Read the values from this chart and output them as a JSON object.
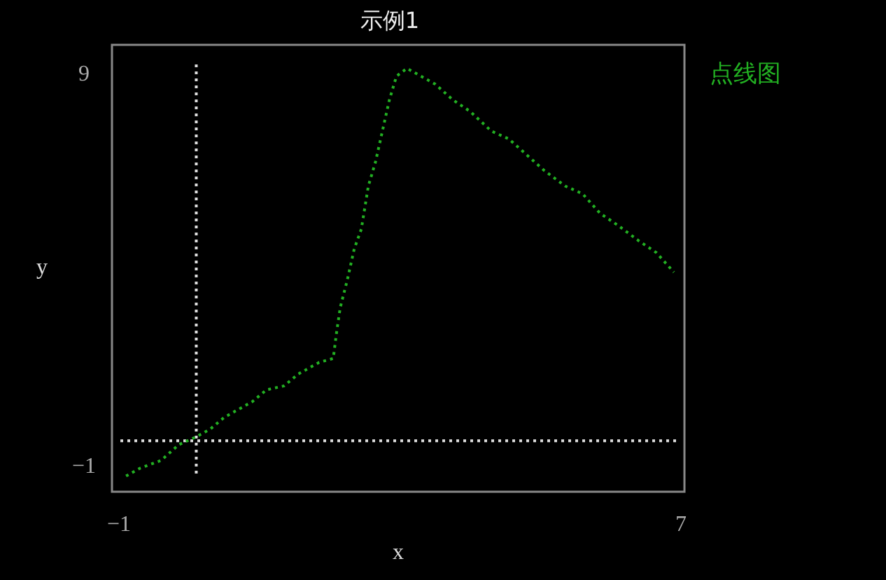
{
  "chart_data": {
    "type": "line",
    "title": "示例1",
    "xlabel": "x",
    "ylabel": "y",
    "x": [
      -0.9,
      -0.7,
      -0.4,
      -0.15,
      0.1,
      0.3,
      0.5,
      0.7,
      0.9,
      1.1,
      1.35,
      1.55,
      1.85,
      2.05,
      2.1,
      2.15,
      2.25,
      2.35,
      2.45,
      2.55,
      2.65,
      2.75,
      2.85,
      2.95,
      3.1,
      3.3,
      3.5,
      3.75,
      4.0,
      4.3,
      4.55,
      4.8,
      5.05,
      5.35,
      5.6,
      5.85,
      6.1,
      6.4,
      6.65,
      6.9
    ],
    "series": [
      {
        "name": "点线图",
        "color": "#22b022",
        "values": [
          -1.3,
          -1.1,
          -0.9,
          -0.5,
          -0.3,
          -0.1,
          0.2,
          0.4,
          0.6,
          0.9,
          1.0,
          1.3,
          1.6,
          1.7,
          2.4,
          3.0,
          3.7,
          4.5,
          5.0,
          6.1,
          6.7,
          7.5,
          8.3,
          8.9,
          9.1,
          8.9,
          8.7,
          8.3,
          8.0,
          7.5,
          7.3,
          6.9,
          6.5,
          6.1,
          5.9,
          5.4,
          5.1,
          4.7,
          4.4,
          3.9
        ]
      }
    ],
    "xlim": [
      -1.1,
      7.05
    ],
    "ylim": [
      -1.7,
      9.7
    ],
    "xticks": [
      -1,
      7
    ],
    "yticks": [
      -1,
      9
    ],
    "ref_lines": [
      {
        "axis": "x",
        "value": 0.1,
        "color": "#dddddd",
        "line_style": "dotted"
      },
      {
        "axis": "y",
        "value": -0.4,
        "color": "#dddddd",
        "line_style": "dotted"
      }
    ],
    "legend": "right",
    "line_style": "dotted"
  }
}
